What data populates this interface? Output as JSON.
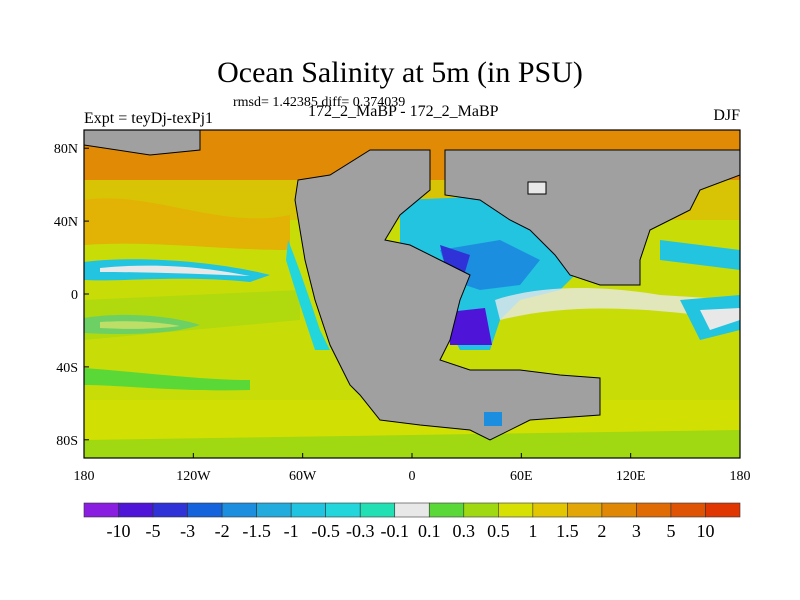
{
  "title": "Ocean Salinity at 5m (in PSU)",
  "stats": "rmsd= 1.42385 diff= 0.374039",
  "experiment": "Expt = teyDj-texPj1",
  "case": "172_2_MaBP - 172_2_MaBP",
  "season": "DJF",
  "chart_data": {
    "type": "heatmap",
    "title": "Ocean Salinity at 5m (in PSU)",
    "projection": "cylindrical equidistant",
    "xlim": [
      -180,
      180
    ],
    "ylim": [
      -90,
      90
    ],
    "x_ticks": [
      {
        "v": -180,
        "label": "180"
      },
      {
        "v": -120,
        "label": "120W"
      },
      {
        "v": -60,
        "label": "60W"
      },
      {
        "v": 0,
        "label": "0"
      },
      {
        "v": 60,
        "label": "60E"
      },
      {
        "v": 120,
        "label": "120E"
      },
      {
        "v": 180,
        "label": "180"
      }
    ],
    "y_ticks": [
      {
        "v": 80,
        "label": "80N"
      },
      {
        "v": 40,
        "label": "40N"
      },
      {
        "v": 0,
        "label": "0"
      },
      {
        "v": -40,
        "label": "40S"
      },
      {
        "v": -80,
        "label": "80S"
      }
    ],
    "colorbar": {
      "labels": [
        "-10",
        "-5",
        "-3",
        "-2",
        "-1.5",
        "-1",
        "-0.5",
        "-0.3",
        "-0.1",
        "0.1",
        "0.3",
        "0.5",
        "1",
        "1.5",
        "2",
        "3",
        "5",
        "10"
      ],
      "colors": [
        "#8a1ee0",
        "#4e14d8",
        "#2f32d6",
        "#1462dc",
        "#1c8ee0",
        "#22acde",
        "#20c4e0",
        "#22d6dc",
        "#22e0b4",
        "#e8e8e8",
        "#5ad838",
        "#a0d812",
        "#d6e002",
        "#e2c602",
        "#e2a606",
        "#e08806",
        "#e06a04",
        "#de5404",
        "#e03602"
      ]
    },
    "land_color": "#a0a0a0"
  }
}
